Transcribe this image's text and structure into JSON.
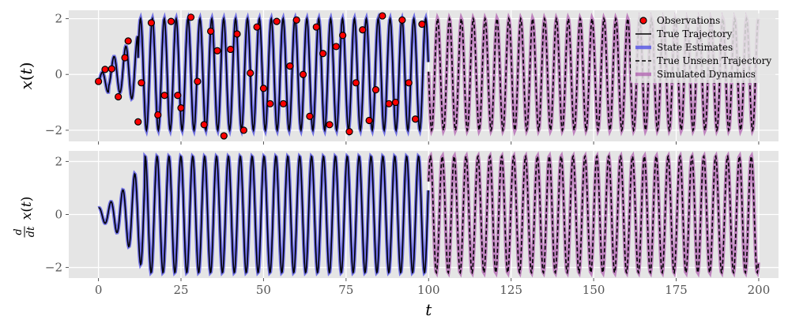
{
  "chart_data": [
    {
      "type": "line",
      "title": "",
      "xlabel": "",
      "ylabel": "x(t)",
      "xlim": [
        -9,
        206
      ],
      "ylim": [
        -2.4,
        2.3
      ],
      "yticks": [
        -2,
        0,
        2
      ],
      "ytick_labels": [
        "−2",
        "0",
        "2"
      ],
      "grid": true,
      "legend_position": "top-right",
      "legend": [
        "Observations",
        "True Trajectory",
        "State Estimates",
        "True Unseen Trajectory",
        "Simulated Dynamics"
      ],
      "colors": {
        "observations": "#ff0000",
        "true_trajectory": "#000000",
        "state_estimates": "#4a4ae6",
        "simulated_dynamics": "#b060b0",
        "background": "#e5e5e5"
      },
      "series": [
        {
          "name": "True Trajectory",
          "x_range": [
            0,
            100
          ],
          "style": "solid"
        },
        {
          "name": "State Estimates",
          "x_range": [
            0,
            100
          ],
          "style": "thick"
        },
        {
          "name": "True Unseen Trajectory",
          "x_range": [
            100,
            200
          ],
          "style": "dashed"
        },
        {
          "name": "Simulated Dynamics",
          "x_range": [
            100,
            200
          ],
          "style": "thick"
        }
      ],
      "observations": {
        "x": [
          0,
          2,
          4,
          6,
          8,
          9,
          12,
          13,
          16,
          18,
          20,
          22,
          24,
          25,
          28,
          30,
          32,
          34,
          36,
          38,
          40,
          42,
          44,
          46,
          48,
          50,
          52,
          54,
          56,
          58,
          60,
          62,
          64,
          66,
          68,
          70,
          72,
          74,
          76,
          78,
          80,
          82,
          84,
          86,
          88,
          90,
          92,
          94,
          96,
          98
        ],
        "y": [
          -0.25,
          0.18,
          0.2,
          -0.8,
          0.6,
          1.2,
          -1.7,
          -0.3,
          1.85,
          -1.45,
          -0.75,
          1.9,
          -0.75,
          -1.2,
          2.05,
          -0.25,
          -1.8,
          1.55,
          0.85,
          -2.2,
          0.9,
          1.45,
          -2.0,
          0.05,
          1.7,
          -0.5,
          -1.05,
          1.9,
          -1.05,
          0.3,
          1.95,
          0.0,
          -1.5,
          1.7,
          0.75,
          -1.8,
          1.0,
          1.4,
          -2.05,
          -0.3,
          1.6,
          -1.65,
          -0.55,
          2.1,
          -1.05,
          -1.0,
          1.95,
          -0.3,
          -1.6,
          1.8
        ]
      }
    },
    {
      "type": "line",
      "title": "",
      "xlabel": "t",
      "ylabel": "d/dt x(t)",
      "xlim": [
        -9,
        206
      ],
      "ylim": [
        -2.4,
        2.4
      ],
      "xticks": [
        0,
        25,
        50,
        75,
        100,
        125,
        150,
        175,
        200
      ],
      "xtick_labels": [
        "0",
        "25",
        "50",
        "75",
        "100",
        "125",
        "150",
        "175",
        "200"
      ],
      "yticks": [
        -2,
        0,
        2
      ],
      "ytick_labels": [
        "−2",
        "0",
        "2"
      ],
      "grid": true,
      "series": [
        {
          "name": "True Trajectory",
          "x_range": [
            0,
            100
          ],
          "style": "solid"
        },
        {
          "name": "State Estimates",
          "x_range": [
            0,
            100
          ],
          "style": "thick"
        },
        {
          "name": "True Unseen Trajectory",
          "x_range": [
            100,
            200
          ],
          "style": "dashed"
        },
        {
          "name": "Simulated Dynamics",
          "x_range": [
            100,
            200
          ],
          "style": "thick"
        }
      ]
    }
  ]
}
